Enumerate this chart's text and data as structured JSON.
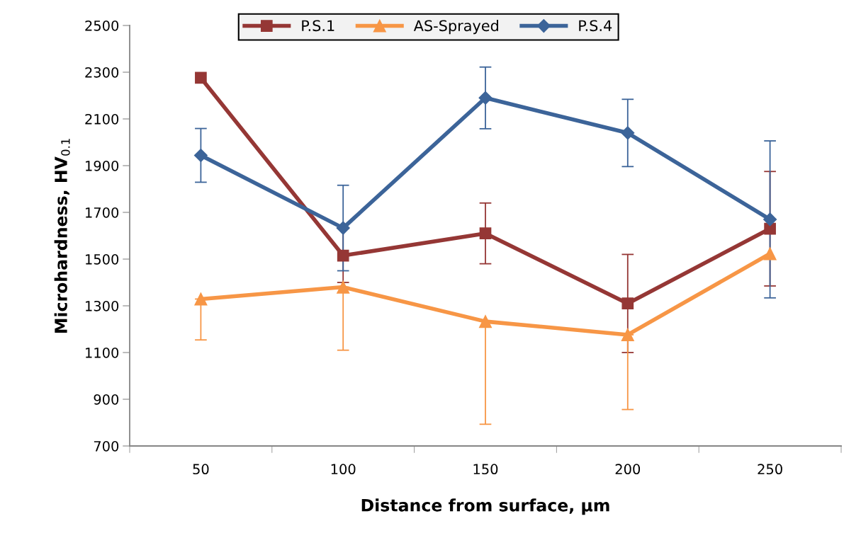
{
  "chart_data": {
    "type": "line",
    "xlabel": "Distance from surface, μm",
    "ylabel": "Microhardness, HV$_{0.1}$",
    "categories": [
      "50",
      "100",
      "150",
      "200",
      "250"
    ],
    "series": [
      {
        "name": "P.S.1",
        "color": "#953735",
        "marker": "square",
        "values": [
          2276,
          1515,
          1610,
          1310,
          1630
        ],
        "errors": [
          null,
          115,
          130,
          210,
          245
        ]
      },
      {
        "name": "AS-Sprayed",
        "color": "#f79646",
        "marker": "triangle",
        "values": [
          1329,
          1380,
          1233,
          1176,
          1523
        ],
        "errors": [
          [
            1154,
            1329
          ],
          [
            1110,
            1380
          ],
          [
            793,
            1233
          ],
          [
            856,
            1176
          ],
          null
        ]
      },
      {
        "name": "P.S.4",
        "color": "#3c6499",
        "marker": "diamond",
        "values": [
          1944,
          1633,
          2190,
          2040,
          1670
        ],
        "errors": [
          115,
          183,
          132,
          144,
          336
        ]
      }
    ],
    "ylim": [
      700,
      2500
    ],
    "yticks": [
      700,
      900,
      1100,
      1300,
      1500,
      1700,
      1900,
      2100,
      2300,
      2500
    ],
    "grid": false,
    "legend": "top",
    "line_style": "solid"
  }
}
